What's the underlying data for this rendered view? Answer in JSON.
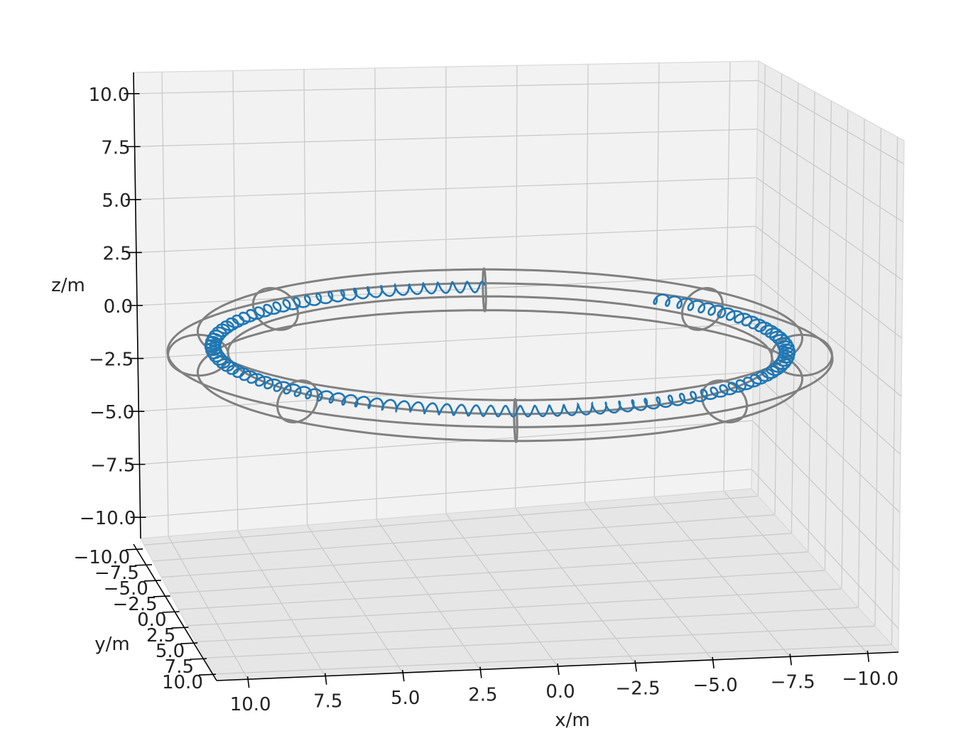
{
  "chart_data": {
    "type": "line",
    "subtype": "3d-wireframe-plot",
    "title": "",
    "xlabel": "x/m",
    "ylabel": "y/m",
    "zlabel": "z/m",
    "xlim": [
      -11,
      11
    ],
    "ylim": [
      -11,
      11
    ],
    "zlim": [
      -11,
      11
    ],
    "x_ticks": [
      "10.0",
      "7.5",
      "5.0",
      "2.5",
      "0.0",
      "−2.5",
      "−5.0",
      "−7.5",
      "−10.0"
    ],
    "y_ticks": [
      "−10.0",
      "−7.5",
      "−5.0",
      "−2.5",
      "0.0",
      "2.5",
      "5.0",
      "7.5",
      "10.0"
    ],
    "z_ticks": [
      "10.0",
      "7.5",
      "5.0",
      "2.5",
      "0.0",
      "−2.5",
      "−5.0",
      "−7.5",
      "−10.0"
    ],
    "grid": true,
    "torus": {
      "major_radius": 10,
      "minor_radius": 1,
      "center_z": -2.5,
      "color": "#808080",
      "cross_sections": 8
    },
    "series": [
      {
        "style": "helical trajectory",
        "color": "#1f77b4",
        "major_radius": 9.5,
        "minor_radius": 0.25,
        "center_z": -2.2,
        "turns": 110,
        "phase_start_deg": 270,
        "phase_end_deg": 235
      }
    ]
  }
}
